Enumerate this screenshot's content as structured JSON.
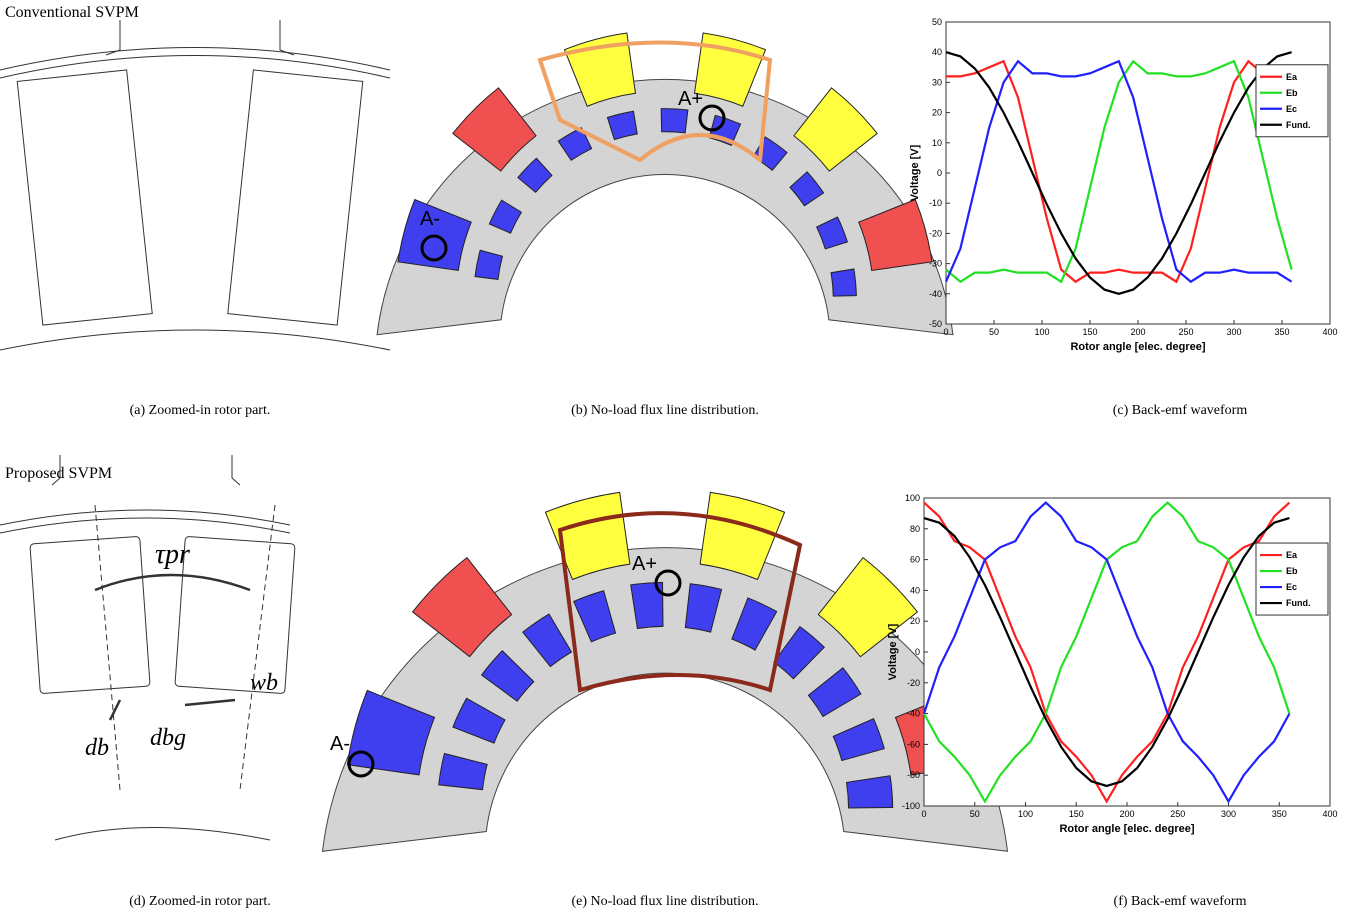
{
  "panels": {
    "top_label": "Conventional SVPM",
    "bottom_label": "Proposed SVPM",
    "captions": [
      "(a) Zoomed-in rotor part.",
      "(b) No-load flux line distribution.",
      "(c) Back-emf waveform",
      "(d) Zoomed-in rotor part.",
      "(e) No-load flux line distribution.",
      "(f) Back-emf waveform"
    ],
    "coil_labels": [
      "A+",
      "A-",
      "A+",
      "A-"
    ],
    "dims": {
      "tau": "τpr",
      "wb": "wb",
      "db": "db",
      "dbg": "dbg"
    }
  },
  "chart_data": [
    {
      "type": "line",
      "xlabel": "Rotor angle [elec. degree]",
      "ylabel": "Voltage [V]",
      "x": [
        0,
        15,
        30,
        45,
        60,
        75,
        90,
        105,
        120,
        135,
        150,
        165,
        180,
        195,
        210,
        225,
        240,
        255,
        270,
        285,
        300,
        315,
        330,
        345,
        360
      ],
      "xlim": [
        0,
        400
      ],
      "xticks": [
        0,
        50,
        100,
        150,
        200,
        250,
        300,
        350,
        400
      ],
      "ylim": [
        -50,
        50
      ],
      "yticks": [
        -50,
        -40,
        -30,
        -20,
        -10,
        0,
        10,
        20,
        30,
        40,
        50
      ],
      "legend": "upper right",
      "series": [
        {
          "name": "Ea",
          "color": "#ff1f1f",
          "values": [
            32,
            32,
            33,
            35,
            37,
            25,
            5,
            -15,
            -32,
            -36,
            -33,
            -33,
            -32,
            -33,
            -33,
            -33,
            -36,
            -25,
            -5,
            15,
            30,
            37,
            33,
            33,
            32
          ]
        },
        {
          "name": "Eb",
          "color": "#22e022",
          "values": [
            -32,
            -36,
            -33,
            -33,
            -32,
            -33,
            -33,
            -33,
            -36,
            -25,
            -5,
            15,
            30,
            37,
            33,
            33,
            32,
            32,
            33,
            35,
            37,
            25,
            5,
            -15,
            -32
          ]
        },
        {
          "name": "Ec",
          "color": "#1f1fff",
          "values": [
            -36,
            -25,
            -5,
            15,
            30,
            37,
            33,
            33,
            32,
            32,
            33,
            35,
            37,
            25,
            5,
            -15,
            -32,
            -36,
            -33,
            -33,
            -32,
            -33,
            -33,
            -33,
            -36
          ]
        },
        {
          "name": "Fund.",
          "color": "#000000",
          "values": [
            40,
            38.6,
            34.6,
            28.3,
            20,
            10.4,
            0,
            -10.4,
            -20,
            -28.3,
            -34.6,
            -38.6,
            -40,
            -38.6,
            -34.6,
            -28.3,
            -20,
            -10.4,
            0,
            10.4,
            20,
            28.3,
            34.6,
            38.6,
            40
          ]
        }
      ]
    },
    {
      "type": "line",
      "xlabel": "Rotor angle [elec. degree]",
      "ylabel": "Voltage [V]",
      "x": [
        0,
        15,
        30,
        45,
        60,
        75,
        90,
        105,
        120,
        135,
        150,
        165,
        180,
        195,
        210,
        225,
        240,
        255,
        270,
        285,
        300,
        315,
        330,
        345,
        360
      ],
      "xlim": [
        0,
        400
      ],
      "xticks": [
        0,
        50,
        100,
        150,
        200,
        250,
        300,
        350,
        400
      ],
      "ylim": [
        -100,
        100
      ],
      "yticks": [
        -100,
        -80,
        -60,
        -40,
        -20,
        0,
        20,
        40,
        60,
        80,
        100
      ],
      "legend": "upper right",
      "series": [
        {
          "name": "Ea",
          "color": "#ff1f1f",
          "values": [
            97,
            88,
            72,
            68,
            60,
            35,
            10,
            -10,
            -40,
            -58,
            -68,
            -80,
            -97,
            -80,
            -68,
            -58,
            -40,
            -10,
            10,
            35,
            60,
            68,
            72,
            88,
            97
          ]
        },
        {
          "name": "Eb",
          "color": "#22e022",
          "values": [
            -40,
            -58,
            -68,
            -80,
            -97,
            -80,
            -68,
            -58,
            -40,
            -10,
            10,
            35,
            60,
            68,
            72,
            88,
            97,
            88,
            72,
            68,
            60,
            35,
            10,
            -10,
            -40
          ]
        },
        {
          "name": "Ec",
          "color": "#1f1fff",
          "values": [
            -40,
            -10,
            10,
            35,
            60,
            68,
            72,
            88,
            97,
            88,
            72,
            68,
            60,
            35,
            10,
            -10,
            -40,
            -58,
            -68,
            -80,
            -97,
            -80,
            -68,
            -58,
            -40
          ]
        },
        {
          "name": "Fund.",
          "color": "#000000",
          "values": [
            87,
            84,
            75.3,
            61.5,
            43.5,
            22.5,
            0,
            -22.5,
            -43.5,
            -61.5,
            -75.3,
            -84,
            -87,
            -84,
            -75.3,
            -61.5,
            -43.5,
            -22.5,
            0,
            22.5,
            43.5,
            61.5,
            75.3,
            84,
            87
          ]
        }
      ]
    }
  ]
}
